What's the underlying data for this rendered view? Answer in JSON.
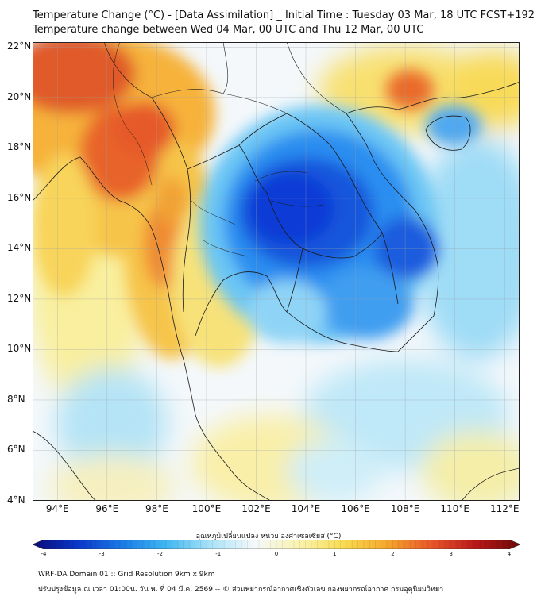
{
  "title_line1": "Temperature Change (°C) - [Data Assimilation] _ Initial Time : Tuesday 03 Mar, 18 UTC FCST+192",
  "title_line2": "Temperature change between Wed 04 Mar, 00 UTC and Thu 12 Mar, 00 UTC",
  "map": {
    "lat_labels": [
      "22°N",
      "20°N",
      "18°N",
      "16°N",
      "14°N",
      "12°N",
      "10°N",
      "8°N",
      "6°N",
      "4°N"
    ],
    "lon_labels": [
      "94°E",
      "96°E",
      "98°E",
      "100°E",
      "102°E",
      "104°E",
      "106°E",
      "108°E",
      "110°E",
      "112°E"
    ],
    "lat_range": [
      4,
      22.2
    ],
    "lon_range": [
      93,
      112.6
    ],
    "colors": {
      "neutral": "#f4f8fb",
      "deep_blue": "#0a3ad6",
      "mid_blue": "#2c8ef0",
      "light_blue": "#8fd6f6",
      "light_yellow": "#f9f0a8",
      "yellow": "#f8d64a",
      "orange": "#f5a02a",
      "red": "#e0452a",
      "border": "#1a1a1a"
    }
  },
  "colorbar": {
    "title": "อุณหภูมิเปลี่ยนแปลง หน่วย องศาเซลเซียส (°C)",
    "ticks": [
      "-4",
      "-3",
      "-2",
      "-1",
      "0",
      "1",
      "2",
      "3",
      "4"
    ],
    "range": [
      -4,
      4
    ],
    "stops": [
      "#0a0a78",
      "#0a36c8",
      "#1a7ae6",
      "#3fb6f2",
      "#a8e2f8",
      "#f4f8fb",
      "#faf3b0",
      "#f8dc52",
      "#f5a62c",
      "#e8562a",
      "#b81818",
      "#6e0808"
    ]
  },
  "footer_line1": "WRF-DA Domain 01 :: Grid Resolution 9km x 9km",
  "footer_line2": "ปรับปรุงข้อมูล ณ เวลา 01:00น. วัน พ. ที่ 04 มี.ค. 2569 -- © ส่วนพยากรณ์อากาศเชิงตัวเลข กองพยากรณ์อากาศ กรมอุตุนิยมวิทยา"
}
